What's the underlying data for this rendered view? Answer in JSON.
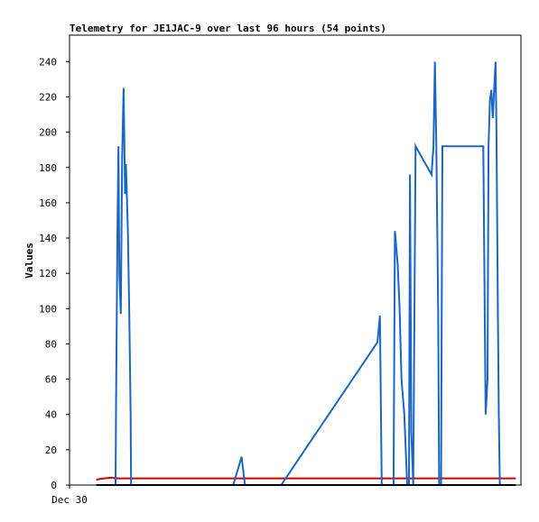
{
  "chart_data": {
    "type": "line",
    "title": "Telemetry for JE1JAC-9 over last 96 hours (54 points)",
    "ylabel": "Values",
    "xlabel": "",
    "ylim": [
      0,
      255
    ],
    "yticks": [
      0,
      20,
      40,
      60,
      80,
      100,
      120,
      140,
      160,
      180,
      200,
      220,
      240
    ],
    "xlim_hours": [
      0,
      96
    ],
    "xtick_labels": [
      {
        "hour": 0,
        "label": "Dec 30"
      }
    ],
    "grid": false,
    "legend": "none",
    "series": [
      {
        "color": "#d40000",
        "points": [
          [
            5.7,
            3.0
          ],
          [
            6.5,
            3.5
          ],
          [
            8.0,
            4.0
          ],
          [
            9.0,
            4.2
          ],
          [
            9.8,
            3.8
          ],
          [
            10.5,
            3.8
          ],
          [
            30.0,
            3.8
          ],
          [
            60.0,
            3.8
          ],
          [
            90.0,
            3.8
          ],
          [
            94.9,
            3.8
          ]
        ]
      },
      {
        "color": "#1a66c2",
        "points": [
          [
            9.8,
            0
          ],
          [
            9.9,
            50
          ],
          [
            10.2,
            145
          ],
          [
            10.4,
            192
          ],
          [
            10.6,
            120
          ],
          [
            10.9,
            97
          ],
          [
            11.2,
            186
          ],
          [
            11.5,
            225
          ],
          [
            11.8,
            165
          ],
          [
            12.0,
            182
          ],
          [
            12.4,
            145
          ],
          [
            12.7,
            100
          ],
          [
            13.0,
            40
          ],
          [
            13.1,
            0
          ],
          [
            34.8,
            0
          ],
          [
            36.6,
            16
          ],
          [
            37.3,
            0
          ],
          [
            45.0,
            0
          ],
          [
            65.5,
            81
          ],
          [
            66.0,
            96
          ],
          [
            66.4,
            0
          ],
          [
            68.9,
            0
          ],
          [
            69.2,
            144
          ],
          [
            69.8,
            125
          ],
          [
            70.2,
            100
          ],
          [
            70.6,
            60
          ],
          [
            71.2,
            40
          ],
          [
            71.8,
            0
          ],
          [
            72.2,
            0
          ],
          [
            72.4,
            176
          ],
          [
            72.7,
            30
          ],
          [
            73.1,
            0
          ],
          [
            73.6,
            192
          ],
          [
            77.0,
            176
          ],
          [
            77.4,
            192
          ],
          [
            77.7,
            240
          ],
          [
            78.0,
            192
          ],
          [
            78.4,
            100
          ],
          [
            78.6,
            0
          ],
          [
            79.0,
            0
          ],
          [
            79.3,
            192
          ],
          [
            88.0,
            192
          ],
          [
            88.5,
            40
          ],
          [
            88.9,
            60
          ],
          [
            89.1,
            192
          ],
          [
            89.4,
            218
          ],
          [
            89.7,
            224
          ],
          [
            90.0,
            208
          ],
          [
            90.3,
            224
          ],
          [
            90.6,
            240
          ],
          [
            90.8,
            200
          ],
          [
            91.1,
            95
          ],
          [
            91.3,
            40
          ],
          [
            91.5,
            0
          ]
        ]
      },
      {
        "color": "#000000",
        "points": [
          [
            5.7,
            0
          ],
          [
            94.9,
            0
          ]
        ]
      }
    ]
  }
}
